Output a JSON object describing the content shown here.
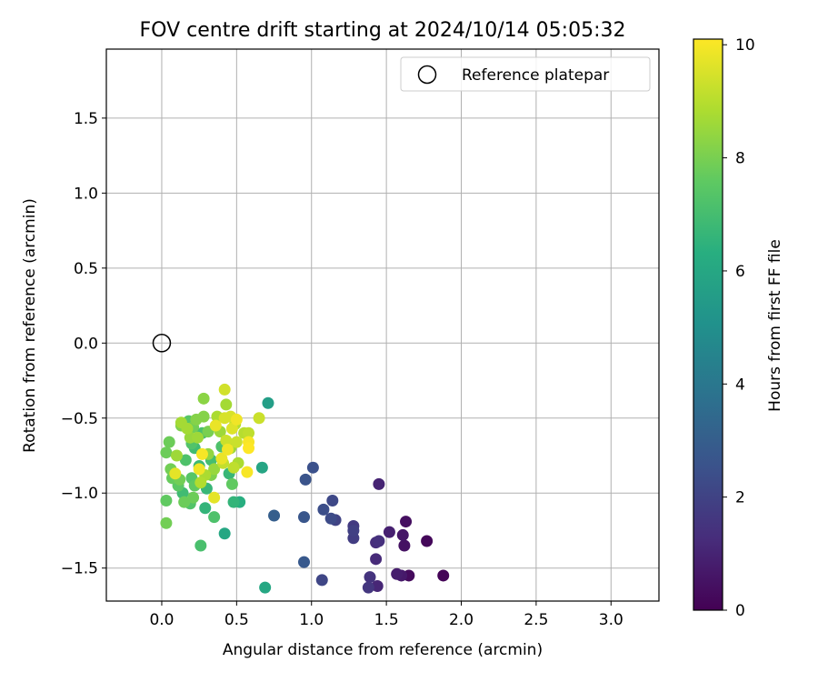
{
  "chart_data": {
    "type": "scatter",
    "title": "FOV centre drift starting at 2024/10/14 05:05:32",
    "xlabel": "Angular distance from reference (arcmin)",
    "ylabel": "Rotation from reference (arcmin)",
    "xlim": [
      -0.37,
      3.32
    ],
    "ylim": [
      -1.72,
      1.96
    ],
    "xticks": [
      0.0,
      0.5,
      1.0,
      1.5,
      2.0,
      2.5,
      3.0
    ],
    "xtick_labels": [
      "0.0",
      "0.5",
      "1.0",
      "1.5",
      "2.0",
      "2.5",
      "3.0"
    ],
    "yticks": [
      -1.5,
      -1.0,
      -0.5,
      0.0,
      0.5,
      1.0,
      1.5
    ],
    "ytick_labels": [
      "−1.5",
      "−1.0",
      "−0.5",
      "0.0",
      "0.5",
      "1.0",
      "1.5"
    ],
    "grid": true,
    "legend": {
      "location": "upper right",
      "entries": [
        "Reference platepar"
      ]
    },
    "reference_point": {
      "name": "Reference platepar",
      "x": 0.0,
      "y": 0.0
    },
    "colorbar": {
      "label": "Hours from first FF file",
      "colormap": "viridis",
      "range": [
        0,
        10.1
      ],
      "ticks": [
        0,
        2,
        4,
        6,
        8,
        10
      ],
      "tick_labels": [
        "0",
        "2",
        "4",
        "6",
        "8",
        "10"
      ]
    },
    "series": [
      {
        "points": [
          {
            "x": 1.88,
            "y": -1.55,
            "t": 0.1
          },
          {
            "x": 1.77,
            "y": -1.32,
            "t": 0.2
          },
          {
            "x": 1.65,
            "y": -1.55,
            "t": 0.3
          },
          {
            "x": 1.63,
            "y": -1.19,
            "t": 0.4
          },
          {
            "x": 1.62,
            "y": -1.35,
            "t": 0.5
          },
          {
            "x": 1.61,
            "y": -1.28,
            "t": 0.6
          },
          {
            "x": 1.6,
            "y": -1.55,
            "t": 0.7
          },
          {
            "x": 1.57,
            "y": -1.54,
            "t": 0.8
          },
          {
            "x": 1.52,
            "y": -1.26,
            "t": 0.9
          },
          {
            "x": 1.45,
            "y": -0.94,
            "t": 1.0
          },
          {
            "x": 1.44,
            "y": -1.62,
            "t": 1.1
          },
          {
            "x": 1.43,
            "y": -1.44,
            "t": 1.2
          },
          {
            "x": 1.43,
            "y": -1.33,
            "t": 1.3
          },
          {
            "x": 1.45,
            "y": -1.32,
            "t": 1.4
          },
          {
            "x": 1.39,
            "y": -1.56,
            "t": 1.5
          },
          {
            "x": 1.38,
            "y": -1.63,
            "t": 1.6
          },
          {
            "x": 1.28,
            "y": -1.22,
            "t": 1.7
          },
          {
            "x": 1.28,
            "y": -1.3,
            "t": 1.8
          },
          {
            "x": 1.28,
            "y": -1.25,
            "t": 1.9
          },
          {
            "x": 1.16,
            "y": -1.18,
            "t": 2.0
          },
          {
            "x": 1.07,
            "y": -1.58,
            "t": 2.1
          },
          {
            "x": 1.14,
            "y": -1.05,
            "t": 2.2
          },
          {
            "x": 1.13,
            "y": -1.17,
            "t": 2.3
          },
          {
            "x": 1.08,
            "y": -1.11,
            "t": 2.4
          },
          {
            "x": 1.01,
            "y": -0.83,
            "t": 2.5
          },
          {
            "x": 0.96,
            "y": -0.91,
            "t": 2.6
          },
          {
            "x": 0.95,
            "y": -1.16,
            "t": 2.7
          },
          {
            "x": 0.95,
            "y": -1.46,
            "t": 2.8
          },
          {
            "x": 0.75,
            "y": -1.15,
            "t": 3.0
          },
          {
            "x": 0.71,
            "y": -0.4,
            "t": 5.6
          },
          {
            "x": 0.69,
            "y": -1.63,
            "t": 6.0
          },
          {
            "x": 0.67,
            "y": -0.83,
            "t": 5.9
          },
          {
            "x": 0.42,
            "y": -1.27,
            "t": 6.0
          },
          {
            "x": 0.52,
            "y": -1.06,
            "t": 6.3
          },
          {
            "x": 0.48,
            "y": -1.06,
            "t": 6.6
          },
          {
            "x": 0.45,
            "y": -0.87,
            "t": 6.7
          },
          {
            "x": 0.26,
            "y": -1.35,
            "t": 7.1
          },
          {
            "x": 0.35,
            "y": -1.16,
            "t": 7.2
          },
          {
            "x": 0.29,
            "y": -1.1,
            "t": 6.6
          },
          {
            "x": 0.19,
            "y": -1.07,
            "t": 7.3
          },
          {
            "x": 0.14,
            "y": -1.0,
            "t": 6.9
          },
          {
            "x": 0.2,
            "y": -0.9,
            "t": 7.4
          },
          {
            "x": 0.25,
            "y": -0.82,
            "t": 6.8
          },
          {
            "x": 0.3,
            "y": -0.97,
            "t": 6.7
          },
          {
            "x": 0.22,
            "y": -0.7,
            "t": 6.9
          },
          {
            "x": 0.16,
            "y": -0.78,
            "t": 7.2
          },
          {
            "x": 0.11,
            "y": -0.95,
            "t": 7.5
          },
          {
            "x": 0.27,
            "y": -0.6,
            "t": 7.1
          },
          {
            "x": 0.18,
            "y": -0.52,
            "t": 7.4
          },
          {
            "x": 0.33,
            "y": -0.78,
            "t": 7.0
          },
          {
            "x": 0.4,
            "y": -0.69,
            "t": 7.2
          },
          {
            "x": 0.47,
            "y": -0.94,
            "t": 7.6
          },
          {
            "x": 0.03,
            "y": -0.73,
            "t": 7.8
          },
          {
            "x": 0.03,
            "y": -1.05,
            "t": 7.6
          },
          {
            "x": 0.03,
            "y": -1.2,
            "t": 7.9
          },
          {
            "x": 0.05,
            "y": -0.66,
            "t": 7.8
          },
          {
            "x": 0.06,
            "y": -0.84,
            "t": 7.9
          },
          {
            "x": 0.07,
            "y": -0.9,
            "t": 7.7
          },
          {
            "x": 0.12,
            "y": -0.91,
            "t": 7.9
          },
          {
            "x": 0.13,
            "y": -0.55,
            "t": 8.1
          },
          {
            "x": 0.15,
            "y": -1.06,
            "t": 7.8
          },
          {
            "x": 0.21,
            "y": -1.03,
            "t": 7.8
          },
          {
            "x": 0.21,
            "y": -0.56,
            "t": 7.9
          },
          {
            "x": 0.23,
            "y": -0.51,
            "t": 8.2
          },
          {
            "x": 0.28,
            "y": -0.49,
            "t": 8.2
          },
          {
            "x": 0.28,
            "y": -0.37,
            "t": 8.3
          },
          {
            "x": 0.31,
            "y": -0.59,
            "t": 8.0
          },
          {
            "x": 0.31,
            "y": -0.74,
            "t": 8.4
          },
          {
            "x": 0.33,
            "y": -0.88,
            "t": 8.1
          },
          {
            "x": 0.35,
            "y": -0.84,
            "t": 8.5
          },
          {
            "x": 0.1,
            "y": -0.75,
            "t": 8.6
          },
          {
            "x": 0.13,
            "y": -0.53,
            "t": 8.7
          },
          {
            "x": 0.17,
            "y": -0.57,
            "t": 8.7
          },
          {
            "x": 0.19,
            "y": -0.63,
            "t": 8.5
          },
          {
            "x": 0.24,
            "y": -0.63,
            "t": 8.6
          },
          {
            "x": 0.26,
            "y": -0.93,
            "t": 8.9
          },
          {
            "x": 0.29,
            "y": -0.88,
            "t": 8.8
          },
          {
            "x": 0.37,
            "y": -0.49,
            "t": 8.8
          },
          {
            "x": 0.39,
            "y": -0.59,
            "t": 8.6
          },
          {
            "x": 0.43,
            "y": -0.41,
            "t": 8.7
          },
          {
            "x": 0.46,
            "y": -0.7,
            "t": 8.6
          },
          {
            "x": 0.49,
            "y": -0.54,
            "t": 8.9
          },
          {
            "x": 0.51,
            "y": -0.8,
            "t": 8.8
          },
          {
            "x": 0.55,
            "y": -0.6,
            "t": 9.0
          },
          {
            "x": 0.58,
            "y": -0.6,
            "t": 9.1
          },
          {
            "x": 0.41,
            "y": -0.8,
            "t": 9.2
          },
          {
            "x": 0.43,
            "y": -0.65,
            "t": 9.3
          },
          {
            "x": 0.48,
            "y": -0.83,
            "t": 9.1
          },
          {
            "x": 0.5,
            "y": -0.66,
            "t": 9.3
          },
          {
            "x": 0.42,
            "y": -0.31,
            "t": 9.4
          },
          {
            "x": 0.42,
            "y": -0.5,
            "t": 9.5
          },
          {
            "x": 0.46,
            "y": -0.49,
            "t": 9.5
          },
          {
            "x": 0.47,
            "y": -0.57,
            "t": 9.6
          },
          {
            "x": 0.35,
            "y": -1.03,
            "t": 9.7
          },
          {
            "x": 0.36,
            "y": -0.55,
            "t": 9.8
          },
          {
            "x": 0.4,
            "y": -0.77,
            "t": 9.8
          },
          {
            "x": 0.44,
            "y": -0.71,
            "t": 9.9
          },
          {
            "x": 0.5,
            "y": -0.51,
            "t": 9.9
          },
          {
            "x": 0.57,
            "y": -0.86,
            "t": 10.0
          },
          {
            "x": 0.58,
            "y": -0.66,
            "t": 10.0
          },
          {
            "x": 0.58,
            "y": -0.7,
            "t": 10.1
          },
          {
            "x": 0.27,
            "y": -0.74,
            "t": 10.0
          },
          {
            "x": 0.25,
            "y": -0.84,
            "t": 9.9
          },
          {
            "x": 0.09,
            "y": -0.87,
            "t": 9.7
          },
          {
            "x": 0.65,
            "y": -0.5,
            "t": 9.3
          },
          {
            "x": 0.22,
            "y": -0.95,
            "t": 7.6
          },
          {
            "x": 0.2,
            "y": -0.67,
            "t": 7.3
          }
        ]
      }
    ]
  }
}
